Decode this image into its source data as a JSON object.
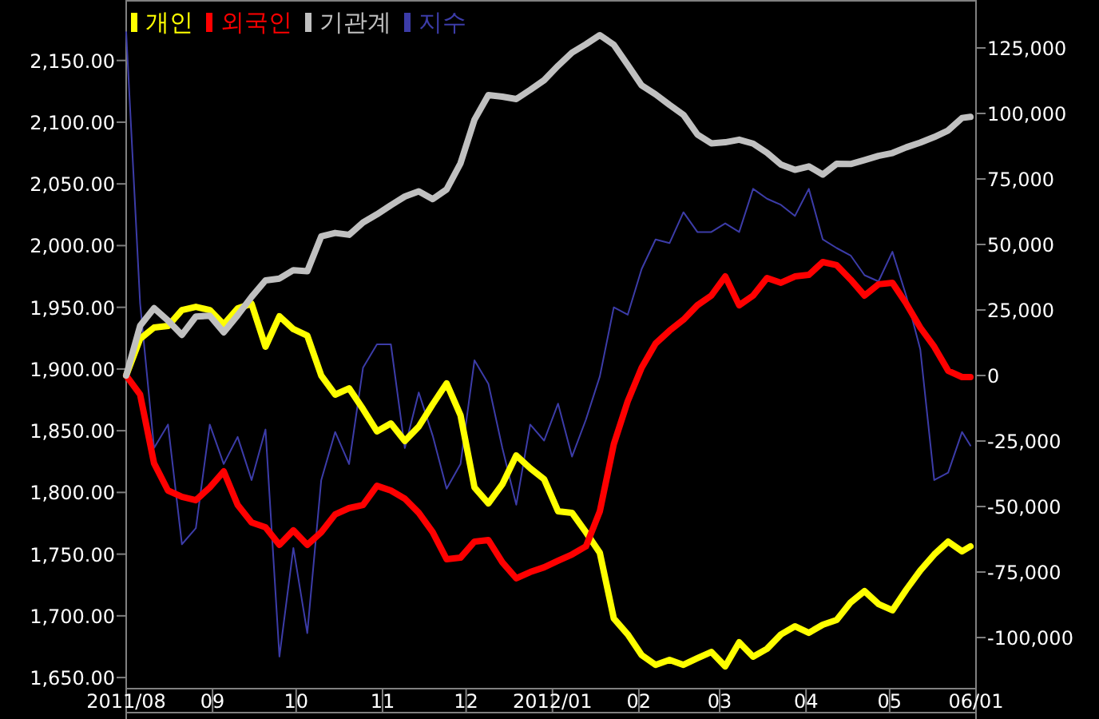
{
  "chart_data": {
    "type": "line",
    "legend": "top left",
    "grid": false,
    "x": [
      "2011-08-01",
      "2011-08-06",
      "2011-08-11",
      "2011-08-16",
      "2011-08-21",
      "2011-08-26",
      "2011-08-31",
      "2011-09-05",
      "2011-09-10",
      "2011-09-15",
      "2011-09-20",
      "2011-09-25",
      "2011-09-30",
      "2011-10-05",
      "2011-10-10",
      "2011-10-15",
      "2011-10-20",
      "2011-10-25",
      "2011-10-30",
      "2011-11-04",
      "2011-11-09",
      "2011-11-14",
      "2011-11-19",
      "2011-11-24",
      "2011-11-29",
      "2011-12-04",
      "2011-12-09",
      "2011-12-14",
      "2011-12-19",
      "2011-12-24",
      "2011-12-29",
      "2012-01-03",
      "2012-01-08",
      "2012-01-13",
      "2012-01-18",
      "2012-01-23",
      "2012-01-28",
      "2012-02-02",
      "2012-02-07",
      "2012-02-12",
      "2012-02-17",
      "2012-02-22",
      "2012-02-27",
      "2012-03-03",
      "2012-03-08",
      "2012-03-13",
      "2012-03-18",
      "2012-03-23",
      "2012-03-28",
      "2012-04-02",
      "2012-04-07",
      "2012-04-12",
      "2012-04-17",
      "2012-04-22",
      "2012-04-27",
      "2012-05-02",
      "2012-05-07",
      "2012-05-12",
      "2012-05-17",
      "2012-05-22",
      "2012-05-27",
      "2012-05-30"
    ],
    "xlim": [
      "2011-08-01",
      "2012-06-01"
    ],
    "xticks": [
      {
        "value": "2011-08-01",
        "label": "2011/08"
      },
      {
        "value": "2011-09-01",
        "label": "09"
      },
      {
        "value": "2011-10-01",
        "label": "10"
      },
      {
        "value": "2011-11-01",
        "label": "11"
      },
      {
        "value": "2011-12-01",
        "label": "12"
      },
      {
        "value": "2012-01-01",
        "label": "2012/01"
      },
      {
        "value": "2012-02-01",
        "label": "02"
      },
      {
        "value": "2012-03-01",
        "label": "03"
      },
      {
        "value": "2012-04-01",
        "label": "04"
      },
      {
        "value": "2012-05-01",
        "label": "05"
      },
      {
        "value": "2012-06-01",
        "label": "06/01"
      }
    ],
    "ylim": [
      1641,
      2199
    ],
    "yticks": [
      {
        "value": 1650,
        "label": "1,650.00"
      },
      {
        "value": 1700,
        "label": "1,700.00"
      },
      {
        "value": 1750,
        "label": "1,750.00"
      },
      {
        "value": 1800,
        "label": "1,800.00"
      },
      {
        "value": 1850,
        "label": "1,850.00"
      },
      {
        "value": 1900,
        "label": "1,900.00"
      },
      {
        "value": 1950,
        "label": "1,950.00"
      },
      {
        "value": 2000,
        "label": "2,000.00"
      },
      {
        "value": 2050,
        "label": "2,050.00"
      },
      {
        "value": 2100,
        "label": "2,100.00"
      },
      {
        "value": 2150,
        "label": "2,150.00"
      }
    ],
    "y2lim": [
      -119500,
      143300
    ],
    "y2ticks": [
      {
        "value": -100000,
        "label": "-100,000"
      },
      {
        "value": -75000,
        "label": "-75,000"
      },
      {
        "value": -50000,
        "label": "-50,000"
      },
      {
        "value": -25000,
        "label": "-25,000"
      },
      {
        "value": 0,
        "label": "0"
      },
      {
        "value": 25000,
        "label": "25,000"
      },
      {
        "value": 50000,
        "label": "50,000"
      },
      {
        "value": 75000,
        "label": "75,000"
      },
      {
        "value": 100000,
        "label": "100,000"
      },
      {
        "value": 125000,
        "label": "125,000"
      }
    ],
    "series": [
      {
        "name": "개인",
        "color": "#ffff00",
        "axis": "y2",
        "values": [
          0,
          14000,
          18300,
          18900,
          25000,
          26200,
          25000,
          19500,
          25600,
          27400,
          11000,
          22600,
          17700,
          15200,
          0,
          -7300,
          -4900,
          -12800,
          -21300,
          -18300,
          -25000,
          -19500,
          -11000,
          -3000,
          -15200,
          -42700,
          -48800,
          -41500,
          -30500,
          -35400,
          -39600,
          -51800,
          -52400,
          -59800,
          -67700,
          -92700,
          -98800,
          -106700,
          -110400,
          -108500,
          -110400,
          -107900,
          -105500,
          -111000,
          -101800,
          -107300,
          -104300,
          -98800,
          -95700,
          -98200,
          -95100,
          -93300,
          -86600,
          -82300,
          -87200,
          -89600,
          -81700,
          -74400,
          -68300,
          -63400,
          -67100,
          -65200
        ]
      },
      {
        "name": "외국인",
        "color": "#ff0000",
        "axis": "y2",
        "values": [
          0,
          -7300,
          -33500,
          -43900,
          -46300,
          -47600,
          -42700,
          -36600,
          -49400,
          -56100,
          -57900,
          -64600,
          -59100,
          -64600,
          -59800,
          -53000,
          -50600,
          -49400,
          -42100,
          -43900,
          -47000,
          -52400,
          -59800,
          -70100,
          -69500,
          -63400,
          -62800,
          -71300,
          -77400,
          -75000,
          -73200,
          -70700,
          -68300,
          -65200,
          -51800,
          -26200,
          -9800,
          3000,
          12200,
          17100,
          21300,
          26800,
          30500,
          37800,
          26800,
          30500,
          37200,
          35400,
          37800,
          38400,
          43300,
          42100,
          36600,
          30500,
          34800,
          35400,
          27400,
          18300,
          11000,
          1800,
          -600,
          -600
        ]
      },
      {
        "name": "기관계",
        "color": "#c0c0c0",
        "axis": "y2",
        "values": [
          0,
          19000,
          25700,
          21000,
          15500,
          22500,
          22800,
          16500,
          23000,
          30000,
          36300,
          37000,
          40200,
          39800,
          53100,
          54400,
          53700,
          58400,
          61500,
          65000,
          68300,
          70300,
          67300,
          71000,
          81000,
          97600,
          107000,
          106400,
          105500,
          109000,
          112700,
          118200,
          123200,
          126400,
          129900,
          126200,
          118500,
          110700,
          107300,
          103300,
          99500,
          92000,
          88600,
          89000,
          90000,
          88500,
          85000,
          80500,
          78500,
          79800,
          76700,
          80800,
          80700,
          82200,
          83800,
          84900,
          87100,
          88900,
          91000,
          93500,
          98300,
          98700
        ]
      },
      {
        "name": "지수",
        "color": "#3c3ca8",
        "axis": "y",
        "values": [
          2173,
          1953,
          1836,
          1855,
          1758,
          1771,
          1855,
          1823,
          1845,
          1810,
          1851,
          1667,
          1755,
          1686,
          1810,
          1849,
          1823,
          1901,
          1920,
          1920,
          1836,
          1881,
          1846,
          1803,
          1823,
          1907,
          1888,
          1836,
          1790,
          1855,
          1842,
          1872,
          1829,
          1859,
          1894,
          1950,
          1944,
          1981,
          2005,
          2002,
          2027,
          2011,
          2011,
          2018,
          2011,
          2046,
          2038,
          2033,
          2024,
          2046,
          2005,
          1998,
          1992,
          1976,
          1971,
          1995,
          1959,
          1916,
          1810,
          1816,
          1849,
          1838
        ]
      }
    ]
  }
}
